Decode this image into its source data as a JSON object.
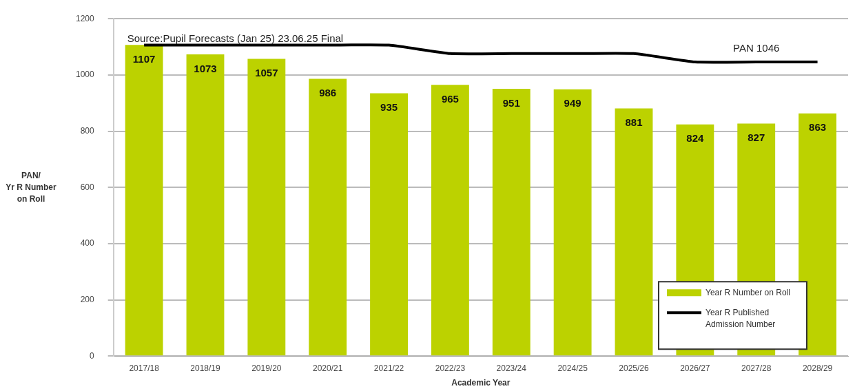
{
  "chart_data": {
    "type": "bar",
    "xlabel": "Academic Year",
    "ylabel": "PAN/\nYr R Number\non Roll",
    "categories": [
      "2017/18",
      "2018/19",
      "2019/20",
      "2020/21",
      "2021/22",
      "2022/23",
      "2023/24",
      "2024/25",
      "2025/26",
      "2026/27",
      "2027/28",
      "2028/29"
    ],
    "series": [
      {
        "name": "Year R Number on Roll",
        "color": "#bcd200",
        "values": [
          1107,
          1073,
          1057,
          986,
          935,
          965,
          951,
          949,
          881,
          824,
          827,
          863
        ],
        "value_labels": [
          "1107",
          "1073",
          "1057",
          "986",
          "935",
          "965",
          "951",
          "949",
          "881",
          "824",
          "827",
          "863"
        ]
      },
      {
        "name": "Year R Published Admission Number",
        "type": "line",
        "color": "#000000",
        "values": [
          1106,
          1106,
          1106,
          1106,
          1106,
          1076,
          1076,
          1076,
          1076,
          1046,
          1046,
          1046
        ]
      }
    ],
    "ylim": [
      0,
      1200
    ],
    "yticks": [
      0,
      200,
      400,
      600,
      800,
      1000,
      1200
    ],
    "grid": "y",
    "legend": "bottom right",
    "marker": "none",
    "line_style": "solid",
    "annotations": [
      "Source:Pupil Forecasts (Jan 25) 23.06.25 Final",
      {
        "text": "PAN 1046",
        "x": "2027/28",
        "y": 1046
      }
    ]
  }
}
